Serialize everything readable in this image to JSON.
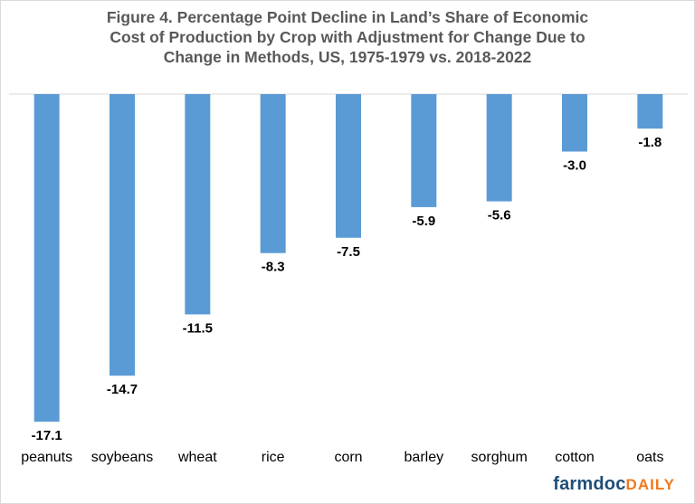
{
  "title_lines": [
    "Figure 4.  Percentage Point Decline in Land’s Share of Economic",
    "Cost of Production  by Crop with Adjustment for Change Due to",
    "Change in Methods,  US, 1975-1979 vs. 2018-2022"
  ],
  "logo": {
    "part1": "farmdoc",
    "part2": "DAILY"
  },
  "colors": {
    "bar": "#5b9bd5",
    "axis": "#d9d9d9",
    "label": "#000000",
    "title": "#595959"
  },
  "chart_data": {
    "type": "bar",
    "categories": [
      "peanuts",
      "soybeans",
      "wheat",
      "rice",
      "corn",
      "barley",
      "sorghum",
      "cotton",
      "oats"
    ],
    "values": [
      -17.1,
      -14.7,
      -11.5,
      -8.3,
      -7.5,
      -5.9,
      -5.6,
      -3.0,
      -1.8
    ],
    "value_labels": [
      "-17.1",
      "-14.7",
      "-11.5",
      "-8.3",
      "-7.5",
      "-5.9",
      "-5.6",
      "-3.0",
      "-1.8"
    ],
    "title": "Figure 4.  Percentage Point Decline in Land’s Share of Economic Cost of Production  by Crop with Adjustment for Change Due to Change in Methods,  US, 1975-1979 vs. 2018-2022",
    "xlabel": "",
    "ylabel": "",
    "ylim": [
      -17.1,
      0
    ],
    "grid": false,
    "legend": "none"
  }
}
